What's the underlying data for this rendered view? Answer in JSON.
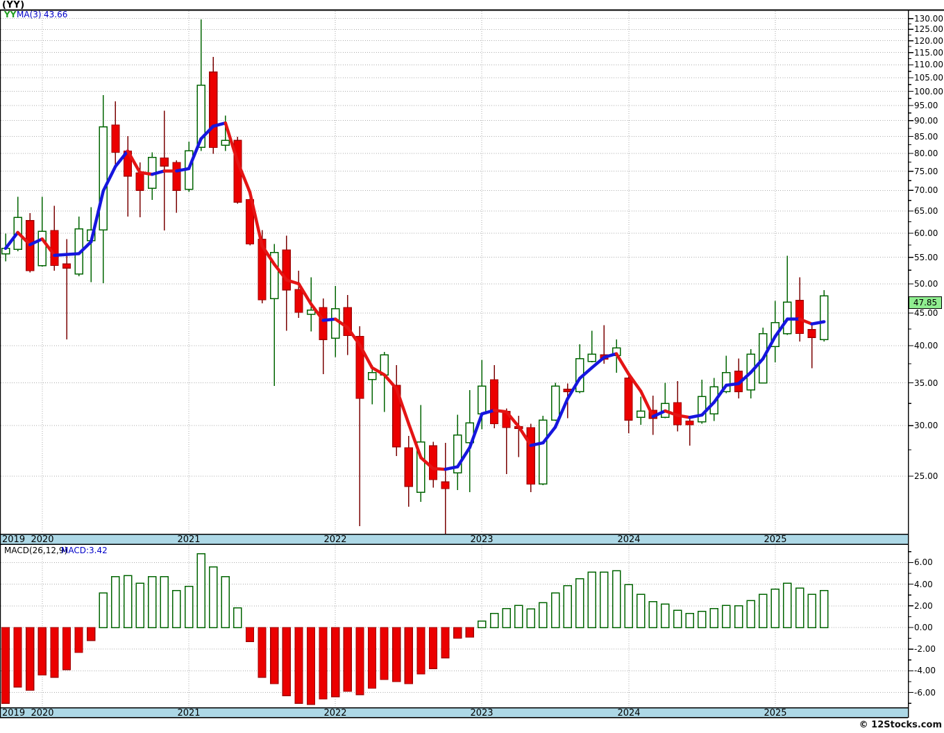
{
  "window": {
    "title": "(YY)"
  },
  "price_panel": {
    "legend": {
      "symbol": "YY",
      "ma_label": "MA(3)",
      "ma_value": "43.66"
    },
    "badge": "47.85",
    "axis_labels": [
      "130.00",
      "125.00",
      "120.00",
      "115.00",
      "110.00",
      "105.00",
      "100.00",
      "95.00",
      "90.00",
      "85.00",
      "80.00",
      "75.00",
      "70.00",
      "65.00",
      "60.00",
      "55.00",
      "50.00",
      "45.00",
      "40.00",
      "35.00",
      "30.00",
      "25.00"
    ]
  },
  "macd_panel": {
    "legend_label": "MACD(26,12,9)",
    "legend_value": "MACD:3.42",
    "axis_labels": [
      "6.00",
      "4.00",
      "2.00",
      "0.00",
      "-2.00",
      "-4.00",
      "-6.00"
    ]
  },
  "timeline": {
    "years": [
      "2019",
      "2020",
      "2021",
      "2022",
      "2023",
      "2024",
      "2025"
    ]
  },
  "footer": {
    "copyright": "© 12Stocks.com"
  },
  "colors": {
    "band": "#ADD8E6",
    "grid": "#AAAAAA",
    "up_outline": "#006400",
    "up_fill": "#FFFFFF",
    "down_fill": "#EB0000",
    "down_outline": "#A00000",
    "down_wick": "#7A0101",
    "ma_up": "#1616DE",
    "ma_down": "#E41414",
    "badge_bg": "#90EE90",
    "legend_symbol": "#1F9E1F",
    "legend_blue": "#0000C8"
  },
  "chart_data": {
    "type": "candlestick",
    "title": "(YY)",
    "symbol": "YY",
    "overlays": [
      "MA(3)"
    ],
    "indicator": "MACD(26,12,9)",
    "indicator_last_value": 3.42,
    "ma_last_value": 43.66,
    "last_price": 47.85,
    "price_axis_range": [
      20,
      134
    ],
    "price_axis_scale": "log",
    "macd_axis_range": [
      -7.5,
      7
    ],
    "x_tick_years": [
      "2019",
      "2020",
      "2021",
      "2022",
      "2023",
      "2024",
      "2025"
    ],
    "grid": true,
    "months": [
      "2019-10",
      "2019-11",
      "2019-12",
      "2020-01",
      "2020-02",
      "2020-03",
      "2020-04",
      "2020-05",
      "2020-06",
      "2020-07",
      "2020-08",
      "2020-09",
      "2020-10",
      "2020-11",
      "2020-12",
      "2021-01",
      "2021-02",
      "2021-03",
      "2021-04",
      "2021-05",
      "2021-06",
      "2021-07",
      "2021-08",
      "2021-09",
      "2021-10",
      "2021-11",
      "2021-12",
      "2022-01",
      "2022-02",
      "2022-03",
      "2022-04",
      "2022-05",
      "2022-06",
      "2022-07",
      "2022-08",
      "2022-09",
      "2022-10",
      "2022-11",
      "2022-12",
      "2023-01",
      "2023-02",
      "2023-03",
      "2023-04",
      "2023-05",
      "2023-06",
      "2023-07",
      "2023-08",
      "2023-09",
      "2023-10",
      "2023-11",
      "2023-12",
      "2024-01",
      "2024-02",
      "2024-03",
      "2024-04",
      "2024-05",
      "2024-06",
      "2024-07",
      "2024-08",
      "2024-09",
      "2024-10",
      "2024-11",
      "2024-12",
      "2025-01",
      "2025-02",
      "2025-03",
      "2025-04",
      "2025-05"
    ],
    "candles_ohlc": [
      [
        55.7,
        59.9,
        54.2,
        56.8
      ],
      [
        56.6,
        68.4,
        56.2,
        63.5
      ],
      [
        62.8,
        64.5,
        52.1,
        52.4
      ],
      [
        53.4,
        68.4,
        53.2,
        60.4
      ],
      [
        60.6,
        66.2,
        52.4,
        53.4
      ],
      [
        53.7,
        58.7,
        40.9,
        52.9
      ],
      [
        51.8,
        63.7,
        51.4,
        60.9
      ],
      [
        58.4,
        65.9,
        50.3,
        60.7
      ],
      [
        60.7,
        98.7,
        50.1,
        88.0
      ],
      [
        88.6,
        96.5,
        76.5,
        80.3
      ],
      [
        80.7,
        85.1,
        63.7,
        73.7
      ],
      [
        74.5,
        77.4,
        63.5,
        70.0
      ],
      [
        70.5,
        80.3,
        67.6,
        78.8
      ],
      [
        78.7,
        93.3,
        60.6,
        76.4
      ],
      [
        77.4,
        78.0,
        64.6,
        70.0
      ],
      [
        70.3,
        83.4,
        69.6,
        80.7
      ],
      [
        81.7,
        129.5,
        80.7,
        102.2
      ],
      [
        107.2,
        113.2,
        79.9,
        81.7
      ],
      [
        82.4,
        91.6,
        80.7,
        83.8
      ],
      [
        83.8,
        84.9,
        66.7,
        67.1
      ],
      [
        67.7,
        68.2,
        57.4,
        57.7
      ],
      [
        58.7,
        60.7,
        46.6,
        47.2
      ],
      [
        47.4,
        57.7,
        34.6,
        56.0
      ],
      [
        56.5,
        59.5,
        42.2,
        48.9
      ],
      [
        49.0,
        52.4,
        44.2,
        45.1
      ],
      [
        44.8,
        51.2,
        42.1,
        45.5
      ],
      [
        45.9,
        47.4,
        36.1,
        40.9
      ],
      [
        41.1,
        49.6,
        38.4,
        45.7
      ],
      [
        45.9,
        48.0,
        38.7,
        41.5
      ],
      [
        41.4,
        42.9,
        20.9,
        33.1
      ],
      [
        35.4,
        37.3,
        32.4,
        36.3
      ],
      [
        36.0,
        39.1,
        31.5,
        38.7
      ],
      [
        34.7,
        37.3,
        26.9,
        27.8
      ],
      [
        27.7,
        28.9,
        22.4,
        24.1
      ],
      [
        23.6,
        32.3,
        22.8,
        28.3
      ],
      [
        27.9,
        28.3,
        24.0,
        24.7
      ],
      [
        24.5,
        28.2,
        20.3,
        23.9
      ],
      [
        25.3,
        31.2,
        23.8,
        29.0
      ],
      [
        28.2,
        34.1,
        23.6,
        30.3
      ],
      [
        31.3,
        38.0,
        29.6,
        34.6
      ],
      [
        35.4,
        37.3,
        29.7,
        30.2
      ],
      [
        31.6,
        31.9,
        25.2,
        29.8
      ],
      [
        29.9,
        31.1,
        26.8,
        29.7
      ],
      [
        29.8,
        30.2,
        23.6,
        24.3
      ],
      [
        24.3,
        31.1,
        24.2,
        30.6
      ],
      [
        30.6,
        35.0,
        30.5,
        34.6
      ],
      [
        34.2,
        34.9,
        30.8,
        33.9
      ],
      [
        33.9,
        40.2,
        33.7,
        38.2
      ],
      [
        37.8,
        42.2,
        37.7,
        38.8
      ],
      [
        38.7,
        43.1,
        37.5,
        38.1
      ],
      [
        38.6,
        40.9,
        36.3,
        39.7
      ],
      [
        35.6,
        35.9,
        29.2,
        30.6
      ],
      [
        30.9,
        33.3,
        30.1,
        31.6
      ],
      [
        31.7,
        33.4,
        29.0,
        30.8
      ],
      [
        30.9,
        35.0,
        30.8,
        32.5
      ],
      [
        32.6,
        35.2,
        29.4,
        30.1
      ],
      [
        30.5,
        31.1,
        27.9,
        30.1
      ],
      [
        30.4,
        35.4,
        30.2,
        33.3
      ],
      [
        31.3,
        35.6,
        30.5,
        34.5
      ],
      [
        33.9,
        38.6,
        33.7,
        36.3
      ],
      [
        36.5,
        38.2,
        33.1,
        33.9
      ],
      [
        34.1,
        39.5,
        33.1,
        38.8
      ],
      [
        35.0,
        42.7,
        34.9,
        41.8
      ],
      [
        39.9,
        47.0,
        37.7,
        43.5
      ],
      [
        41.8,
        55.3,
        41.6,
        46.8
      ],
      [
        47.1,
        51.2,
        40.6,
        41.8
      ],
      [
        42.4,
        43.2,
        36.9,
        41.2
      ],
      [
        40.9,
        48.9,
        40.6,
        47.85
      ]
    ],
    "macd_values": [
      -7.0,
      -5.5,
      -5.8,
      -4.4,
      -4.6,
      -3.9,
      -2.3,
      -1.2,
      3.2,
      4.7,
      4.8,
      4.1,
      4.7,
      4.7,
      3.4,
      3.8,
      6.8,
      5.6,
      4.7,
      1.8,
      -1.3,
      -4.6,
      -5.2,
      -6.3,
      -7.0,
      -7.1,
      -6.6,
      -6.4,
      -5.9,
      -6.2,
      -5.6,
      -4.8,
      -5.0,
      -5.2,
      -4.3,
      -3.8,
      -2.8,
      -1.0,
      -0.9,
      0.6,
      1.3,
      1.75,
      2.05,
      1.7,
      2.3,
      3.2,
      3.85,
      4.5,
      5.1,
      5.1,
      5.25,
      3.95,
      3.05,
      2.4,
      2.15,
      1.6,
      1.3,
      1.5,
      1.75,
      2.05,
      2.0,
      2.5,
      3.05,
      3.55,
      4.1,
      3.65,
      3.05,
      3.42
    ]
  }
}
